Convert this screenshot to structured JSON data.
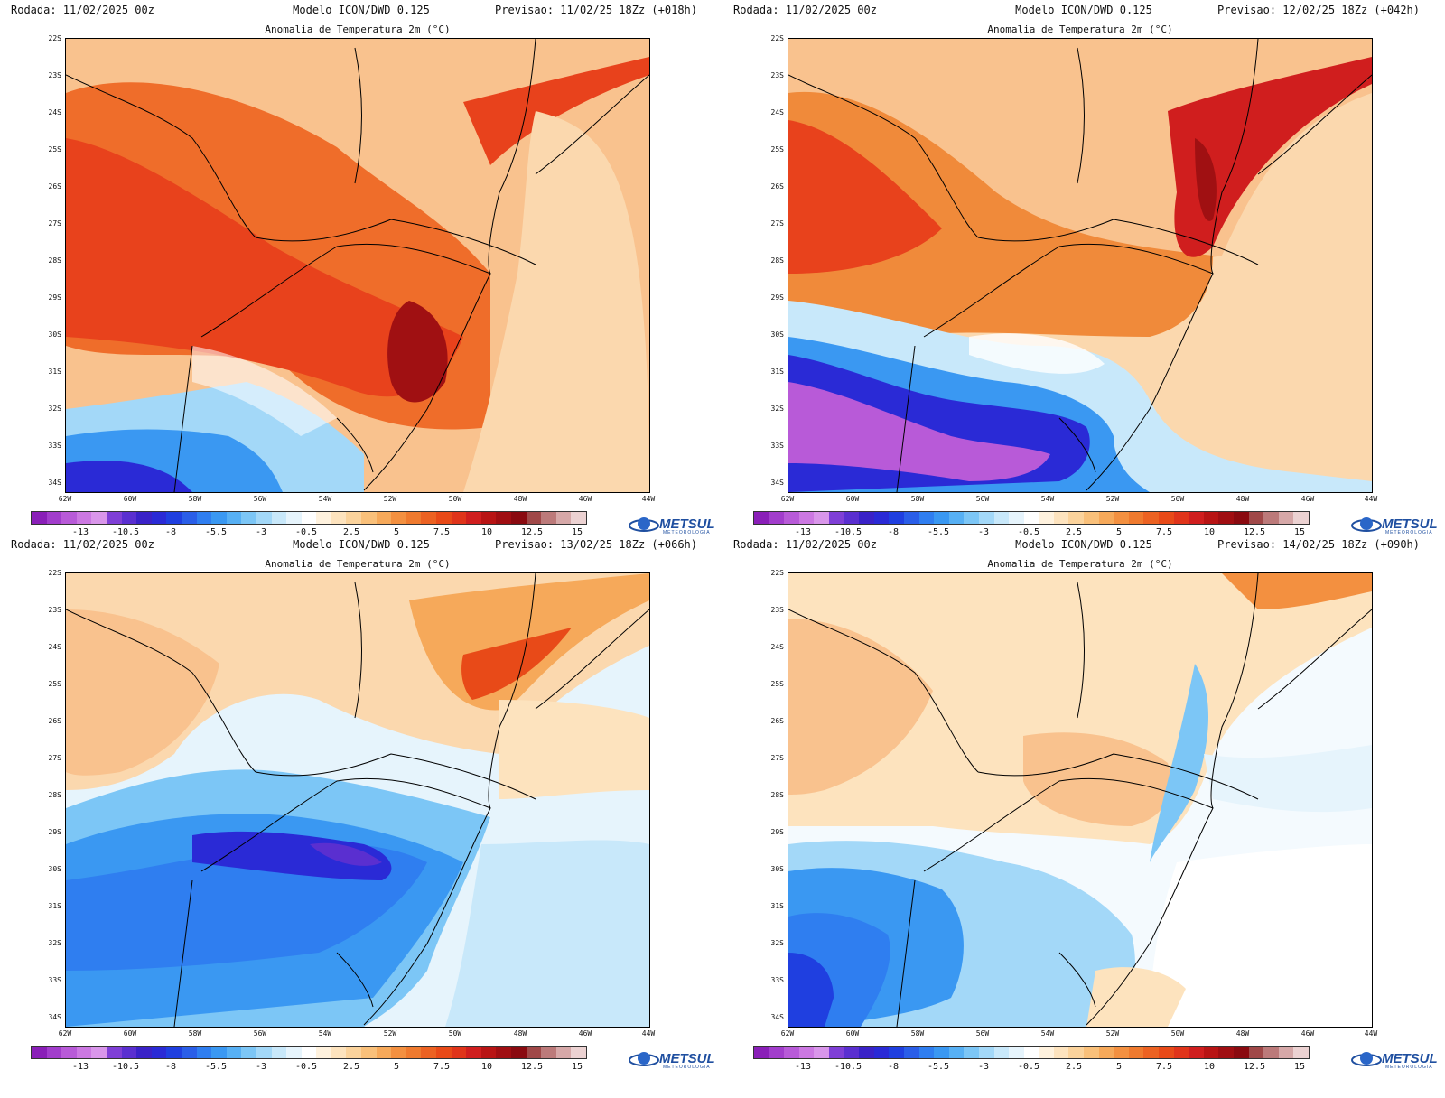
{
  "labels": {
    "lat_ticks": [
      "22S",
      "23S",
      "24S",
      "25S",
      "26S",
      "27S",
      "28S",
      "29S",
      "30S",
      "31S",
      "32S",
      "33S",
      "34S"
    ],
    "lon_ticks": [
      "62W",
      "60W",
      "58W",
      "56W",
      "54W",
      "52W",
      "50W",
      "48W",
      "46W",
      "44W"
    ],
    "colorbar_ticks": [
      "-13",
      "-10.5",
      "-8",
      "-5.5",
      "-3",
      "-0.5",
      "2.5",
      "5",
      "7.5",
      "10",
      "12.5",
      "15"
    ],
    "logo_text": "METSUL",
    "logo_sub": "METEOROLOGIA"
  },
  "colorbar_colors": [
    "#8a1fb8",
    "#a23dcc",
    "#b85ad8",
    "#cc78e2",
    "#d996ea",
    "#7f3fd6",
    "#5a2fd0",
    "#3a22c8",
    "#2a2ad6",
    "#1f3fe0",
    "#2a5ee8",
    "#2f7ef0",
    "#3a98f2",
    "#57b0f4",
    "#7cc6f6",
    "#a3d8f8",
    "#c8e8fa",
    "#e6f4fc",
    "#ffffff",
    "#fff2de",
    "#fde3be",
    "#fbd39c",
    "#f9c07a",
    "#f6a95a",
    "#f39040",
    "#ef7a2e",
    "#ec6222",
    "#e84a18",
    "#e0341a",
    "#d01e1e",
    "#b81414",
    "#a00e12",
    "#8a0a10",
    "#a04848",
    "#bc7a7a",
    "#d6a8a8",
    "#ecd2d2"
  ],
  "panels": [
    {
      "run": "Rodada: 11/02/2025 00z",
      "model": "Modelo ICON/DWD 0.125",
      "forecast": "Previsao: 11/02/25 18Zz (+018h)",
      "title": "Anomalia de Temperatura 2m (°C)"
    },
    {
      "run": "Rodada: 11/02/2025 00z",
      "model": "Modelo ICON/DWD 0.125",
      "forecast": "Previsao: 12/02/25 18Zz (+042h)",
      "title": "Anomalia de Temperatura 2m (°C)"
    },
    {
      "run": "Rodada: 11/02/2025 00z",
      "model": "Modelo ICON/DWD 0.125",
      "forecast": "Previsao: 13/02/25 18Zz (+066h)",
      "title": "Anomalia de Temperatura 2m (°C)"
    },
    {
      "run": "Rodada: 11/02/2025 00z",
      "model": "Modelo ICON/DWD 0.125",
      "forecast": "Previsao: 14/02/25 18Zz (+090h)",
      "title": "Anomalia de Temperatura 2m (°C)"
    }
  ]
}
